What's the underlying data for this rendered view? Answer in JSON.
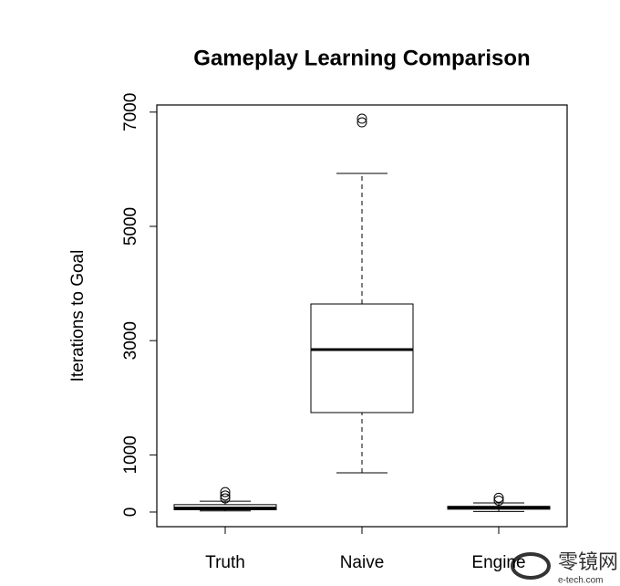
{
  "chart_data": {
    "type": "box",
    "title": "Gameplay Learning Comparison",
    "y_label": "Iterations to Goal",
    "categories": [
      "Truth",
      "Naive",
      "Engine"
    ],
    "whisker_low": [
      20,
      687,
      10
    ],
    "q1": [
      40,
      1741,
      50
    ],
    "median": [
      70,
      2843,
      75
    ],
    "q3": [
      130,
      3642,
      100
    ],
    "whisker_high": [
      190,
      5927,
      160
    ],
    "outliers": [
      [
        240,
        290,
        350
      ],
      [
        6821,
        6885
      ],
      [
        200,
        250
      ]
    ],
    "color": "#000000",
    "ylim": [
      -256,
      7125
    ],
    "yticks": [
      0,
      1000,
      3000,
      5000,
      7000
    ],
    "watermark": {
      "name": "零镜网",
      "site": "e-tech.com"
    }
  }
}
